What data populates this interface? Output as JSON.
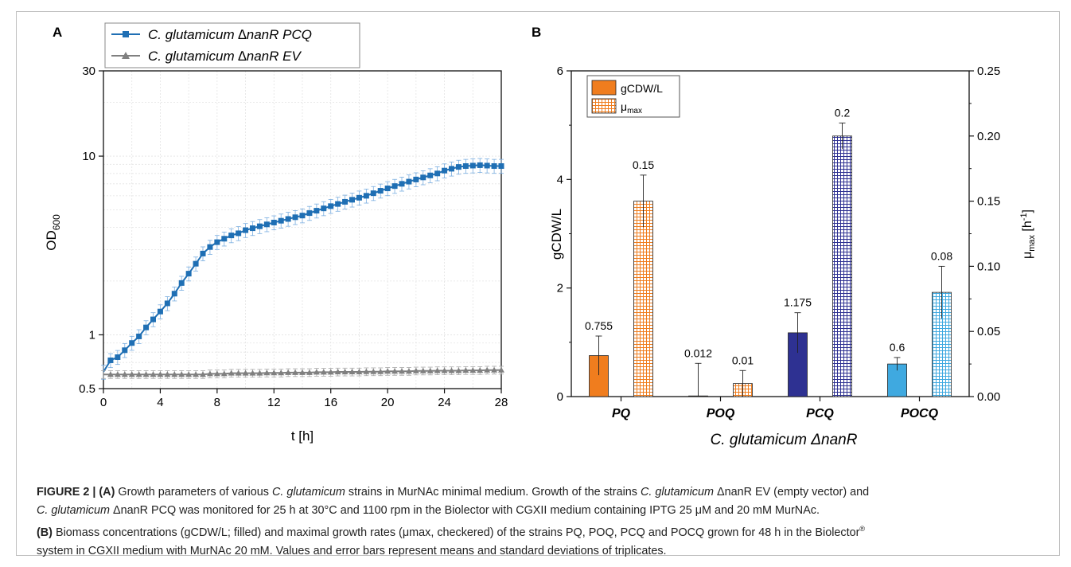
{
  "panel_a": {
    "label": "A",
    "legend": [
      {
        "text": "C. glutamicum ∆nanR PCQ",
        "color": "#1f6fb4",
        "marker": "square"
      },
      {
        "text": "C. glutamicum ∆nanR EV",
        "color": "#808080",
        "marker": "triangle"
      }
    ],
    "ylabel_main": "OD",
    "ylabel_sub": "600",
    "xlabel": "t [h]"
  },
  "panel_b": {
    "label": "B",
    "ylabel_left": "gCDW/L",
    "ylabel_right_main": "μ",
    "ylabel_right_sub": "max",
    "ylabel_right_unit": " [h",
    "ylabel_right_sup": "-1",
    "ylabel_right_close": "]",
    "xlabel": "C. glutamicum ΔnanR",
    "legend": [
      {
        "text": "gCDW/L"
      },
      {
        "text_main": "μ",
        "text_sub": "max"
      }
    ]
  },
  "chart_data": [
    {
      "type": "line",
      "panel": "A",
      "x_scale": "linear",
      "y_scale": "log",
      "xlim": [
        0,
        28
      ],
      "ylim": [
        0.5,
        30
      ],
      "xticks": [
        0,
        4,
        8,
        12,
        16,
        20,
        24,
        28
      ],
      "yticks": [
        0.5,
        1,
        10,
        30
      ],
      "ytick_labels": [
        "0.5",
        "1",
        "10",
        "30"
      ],
      "grid": true,
      "legend_position": "top-left, above plot",
      "series": [
        {
          "name": "C. glutamicum ∆nanR PCQ",
          "color": "#1f6fb4",
          "x": [
            0,
            0.5,
            1,
            1.5,
            2,
            2.5,
            3,
            3.5,
            4,
            4.5,
            5,
            5.5,
            6,
            6.5,
            7,
            7.5,
            8,
            8.5,
            9,
            9.5,
            10,
            10.5,
            11,
            11.5,
            12,
            12.5,
            13,
            13.5,
            14,
            14.5,
            15,
            15.5,
            16,
            16.5,
            17,
            17.5,
            18,
            18.5,
            19,
            19.5,
            20,
            20.5,
            21,
            21.5,
            22,
            22.5,
            23,
            23.5,
            24,
            24.5,
            25,
            25.5,
            26,
            26.5,
            27,
            27.5,
            28
          ],
          "y": [
            0.62,
            0.72,
            0.75,
            0.82,
            0.9,
            0.98,
            1.1,
            1.22,
            1.35,
            1.5,
            1.7,
            1.95,
            2.2,
            2.5,
            2.85,
            3.1,
            3.3,
            3.45,
            3.6,
            3.7,
            3.85,
            3.95,
            4.05,
            4.15,
            4.25,
            4.35,
            4.45,
            4.55,
            4.65,
            4.8,
            4.95,
            5.1,
            5.25,
            5.4,
            5.55,
            5.7,
            5.85,
            6.0,
            6.2,
            6.4,
            6.6,
            6.8,
            7.0,
            7.2,
            7.4,
            7.6,
            7.8,
            8.0,
            8.3,
            8.5,
            8.7,
            8.8,
            8.85,
            8.9,
            8.85,
            8.8,
            8.8
          ],
          "error": 0.09
        },
        {
          "name": "C. glutamicum ∆nanR EV",
          "color": "#808080",
          "x": [
            0,
            0.5,
            1,
            1.5,
            2,
            2.5,
            3,
            3.5,
            4,
            4.5,
            5,
            5.5,
            6,
            6.5,
            7,
            7.5,
            8,
            8.5,
            9,
            9.5,
            10,
            10.5,
            11,
            11.5,
            12,
            12.5,
            13,
            13.5,
            14,
            14.5,
            15,
            15.5,
            16,
            16.5,
            17,
            17.5,
            18,
            18.5,
            19,
            19.5,
            20,
            20.5,
            21,
            21.5,
            22,
            22.5,
            23,
            23.5,
            24,
            24.5,
            25,
            25.5,
            26,
            26.5,
            27,
            27.5,
            28
          ],
          "y": [
            0.6,
            0.6,
            0.6,
            0.6,
            0.6,
            0.6,
            0.6,
            0.6,
            0.6,
            0.6,
            0.6,
            0.6,
            0.6,
            0.6,
            0.6,
            0.605,
            0.605,
            0.605,
            0.61,
            0.61,
            0.61,
            0.61,
            0.61,
            0.612,
            0.612,
            0.612,
            0.615,
            0.615,
            0.615,
            0.615,
            0.618,
            0.618,
            0.618,
            0.62,
            0.62,
            0.62,
            0.62,
            0.622,
            0.622,
            0.622,
            0.625,
            0.625,
            0.625,
            0.625,
            0.628,
            0.628,
            0.628,
            0.63,
            0.63,
            0.63,
            0.63,
            0.632,
            0.632,
            0.632,
            0.635,
            0.635,
            0.635
          ],
          "error": 0.05
        }
      ]
    },
    {
      "type": "bar",
      "panel": "B",
      "categories": [
        "PQ",
        "POQ",
        "PCQ",
        "POCQ"
      ],
      "ylim_left": [
        0,
        6
      ],
      "ylim_right": [
        0,
        0.25
      ],
      "yticks_left": [
        0,
        2,
        4,
        6
      ],
      "yticks_right": [
        0.0,
        0.05,
        0.1,
        0.15,
        0.2,
        0.25
      ],
      "ytick_labels_right": [
        "0.00",
        "0.05",
        "0.10",
        "0.15",
        "0.20",
        "0.25"
      ],
      "grid": false,
      "legend_position": "top-left",
      "series": [
        {
          "name": "gCDW/L",
          "axis": "left",
          "style": "filled",
          "values": [
            0.755,
            0.012,
            1.175,
            0.6
          ],
          "labels": [
            "0.755",
            "0.012",
            "1.175",
            "0.6"
          ],
          "errors": [
            0.36,
            0.6,
            0.37,
            0.12
          ],
          "colors": [
            "#f07d1e",
            "#f07d1e",
            "#2e3192",
            "#3fa9e0"
          ]
        },
        {
          "name": "μmax",
          "axis": "right",
          "style": "checkered",
          "values": [
            0.15,
            0.01,
            0.2,
            0.08
          ],
          "labels": [
            "0.15",
            "0.01",
            "0.2",
            "0.08"
          ],
          "errors": [
            0.02,
            0.01,
            0.01,
            0.02
          ],
          "colors": [
            "#f07d1e",
            "#f07d1e",
            "#2e3192",
            "#3fa9e0"
          ]
        }
      ]
    }
  ],
  "caption": {
    "fig_label": "FIGURE 2 | ",
    "a_tag": "(A)",
    "a_title_1": " Growth parameters of various ",
    "a_title_i": "C. glutamicum",
    "a_title_2": " strains in MurNAc minimal medium. Growth of the strains ",
    "a_title_i2": "C. glutamicum",
    "a_title_3": " ΔnanR EV (empty vector) and",
    "line2_i": "C. glutamicum",
    "line2": " ΔnanR PCQ was monitored for 25 h at 30°C and 1100 rpm in the Biolector with CGXII medium containing IPTG 25 μM and 20 mM MurNAc.",
    "b_tag": "(B)",
    "line3": " Biomass concentrations (gCDW/L; filled) and maximal growth rates (μmax, checkered) of the strains PQ, POQ, PCQ and POCQ grown for 48 h in the Biolector",
    "line3_sup": "®",
    "line4": "system in CGXII medium with MurNAc 20 mM. Values and error bars represent means and standard deviations of triplicates."
  }
}
